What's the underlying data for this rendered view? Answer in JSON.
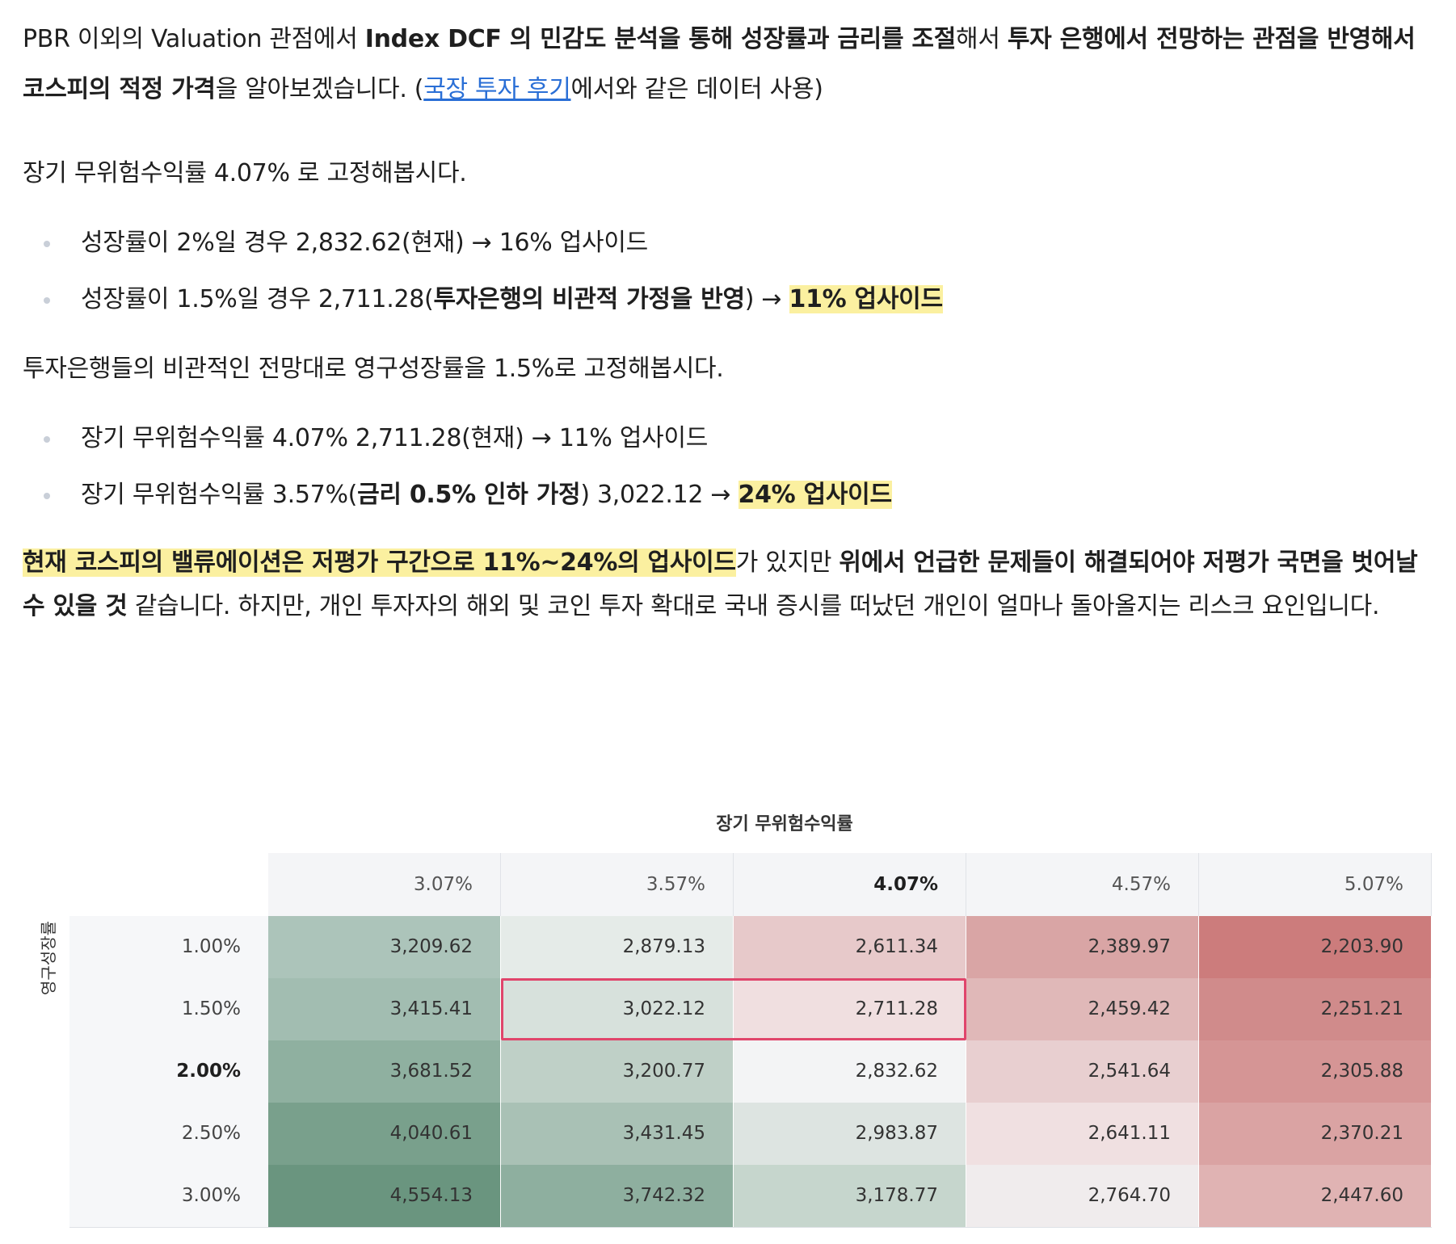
{
  "para1": {
    "s1": "PBR 이외의 Valuation 관점에서 ",
    "b1": "Index DCF 의 민감도 분석을 통해 성장률과 금리를 조절",
    "s2": "해서 ",
    "b2": "투자 은행에서 전망하는 관점을 반영해서 코스피의 적정 가격",
    "s3": "을 알아보겠습니다. (",
    "link": "국장 투자 후기",
    "s4": "에서와 같은 데이터 사용)"
  },
  "para2": "장기 무위험수익률 4.07% 로 고정해봅시다.",
  "list1": {
    "item1": "성장률이 2%일 경우 2,832.62(현재) → 16% 업사이드",
    "item2_pre": "성장률이 1.5%일 경우 2,711.28(",
    "item2_bold": "투자은행의 비관적 가정을 반영",
    "item2_mid": ") → ",
    "item2_hl": "11% 업사이드"
  },
  "para3": "투자은행들의 비관적인 전망대로 영구성장률을 1.5%로 고정해봅시다.",
  "list2": {
    "item1": "장기 무위험수익률 4.07% 2,711.28(현재) → 11% 업사이드",
    "item2_pre": "장기 무위험수익률 3.57%(",
    "item2_bold": "금리 0.5% 인하 가정",
    "item2_mid": ") 3,022.12 → ",
    "item2_hl": "24% 업사이드"
  },
  "para4": {
    "hl": "현재 코스피의 밸류에이션은 저평가 구간으로 11%~24%의 업사이드",
    "s1": "가 있지만 ",
    "b1": "위에서 언급한 문제들이 해결되어야 저평가 국면을 벗어날 수 있을 것",
    "s2": " 같습니다. 하지만, 개인 투자자의 해외 및 코인 투자 확대로 국내 증시를 떠났던 개인이 얼마나 돌아올지는 리스크 요인입니다."
  },
  "chart_data": {
    "type": "heatmap",
    "title": "장기 무위험수익률",
    "ylabel": "영구성장률",
    "columns": [
      "3.07%",
      "3.57%",
      "4.07%",
      "4.57%",
      "5.07%"
    ],
    "rows": [
      "1.00%",
      "1.50%",
      "2.00%",
      "2.50%",
      "3.00%"
    ],
    "highlight_column": "4.07%",
    "highlight_row": "2.00%",
    "selected_cells": [
      [
        1,
        1
      ],
      [
        1,
        2
      ]
    ],
    "values": [
      [
        "3,209.62",
        "2,879.13",
        "2,611.34",
        "2,389.97",
        "2,203.90"
      ],
      [
        "3,415.41",
        "3,022.12",
        "2,711.28",
        "2,459.42",
        "2,251.21"
      ],
      [
        "3,681.52",
        "3,200.77",
        "2,832.62",
        "2,541.64",
        "2,305.88"
      ],
      [
        "4,040.61",
        "3,431.45",
        "2,983.87",
        "2,641.11",
        "2,370.21"
      ],
      [
        "4,554.13",
        "3,742.32",
        "3,178.77",
        "2,764.70",
        "2,447.60"
      ]
    ],
    "colors": [
      [
        "#acc4ba",
        "#e5ebe8",
        "#e7c9ca",
        "#d9a5a5",
        "#cc7c7c"
      ],
      [
        "#a2bdb1",
        "#d7e1dc",
        "#f0dfe0",
        "#e0b8b8",
        "#d08b8b"
      ],
      [
        "#8fb0a0",
        "#bfd0c7",
        "#f3f4f5",
        "#e8cfd0",
        "#d59595"
      ],
      [
        "#79a08c",
        "#a9c1b5",
        "#dde4e1",
        "#f0e0e1",
        "#daa3a3"
      ],
      [
        "#6a957f",
        "#8eaf9f",
        "#c6d6cd",
        "#f0eced",
        "#e0b3b3"
      ]
    ]
  }
}
